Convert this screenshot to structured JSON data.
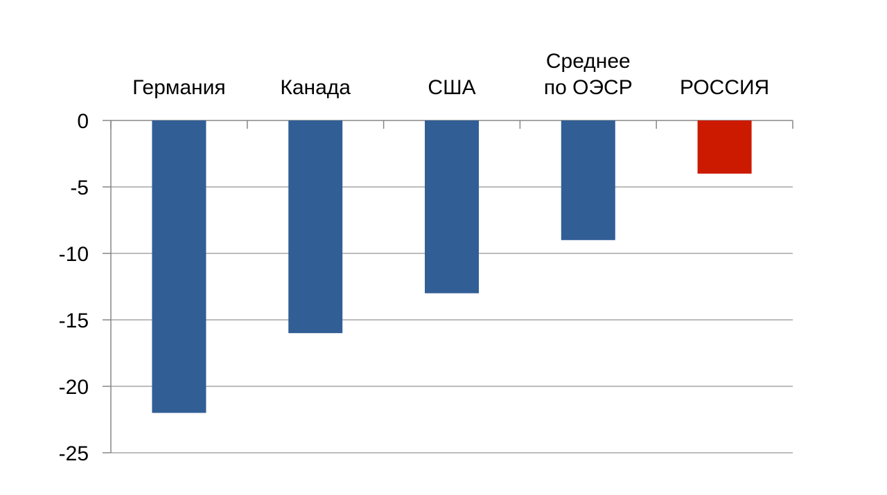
{
  "chart_data": {
    "type": "bar",
    "categories": [
      [
        "Германия"
      ],
      [
        "Канада"
      ],
      [
        "США"
      ],
      [
        "Среднее",
        "по ОЭСР"
      ],
      [
        "РОССИЯ"
      ]
    ],
    "values": [
      -22,
      -16,
      -13,
      -9,
      -4
    ],
    "bar_colors": [
      "#325E96",
      "#325E96",
      "#325E96",
      "#325E96",
      "#CC1A00"
    ],
    "ylim": [
      -25,
      0
    ],
    "yticks": [
      0,
      -5,
      -10,
      -15,
      -20,
      -25
    ],
    "ytick_labels": [
      "0",
      "-5",
      "-10",
      "-15",
      "-20",
      "-25"
    ],
    "grid": true,
    "grid_color": "#A6A6A6",
    "axis_color": "#868686",
    "title": "",
    "xlabel": "",
    "ylabel": "",
    "legend": "none"
  }
}
